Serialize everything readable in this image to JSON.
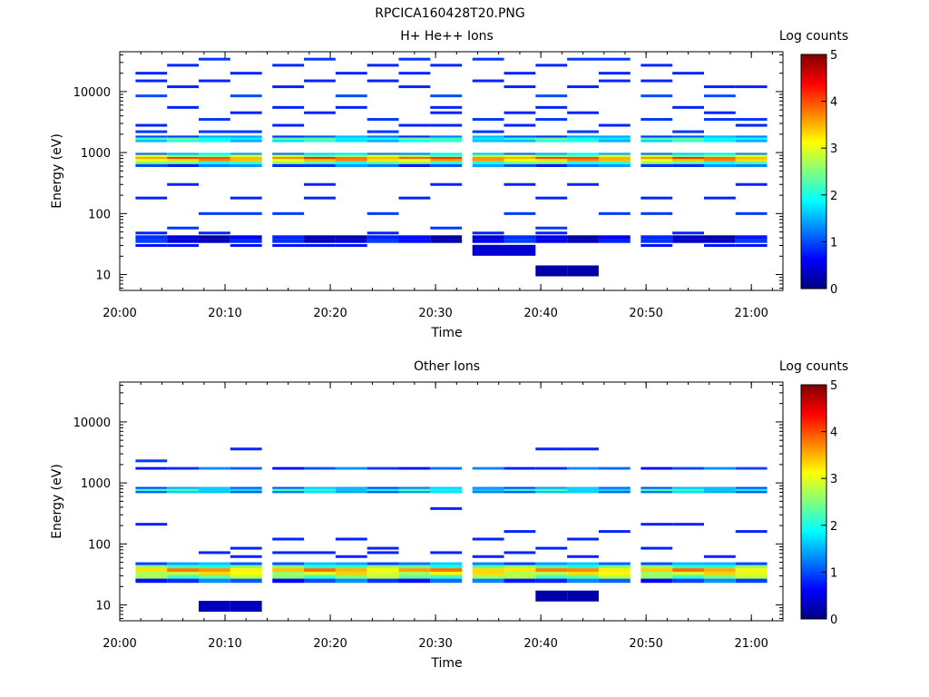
{
  "figure_title": "RPCICA160428T20.PNG",
  "colormap": [
    "#00007f",
    "#0000ff",
    "#007fff",
    "#00ffff",
    "#7fff7f",
    "#ffff00",
    "#ff7f00",
    "#ff0000",
    "#7f0000"
  ],
  "chart_data": [
    {
      "type": "heatmap",
      "title": "H+ He++ Ions",
      "xlabel": "Time",
      "ylabel": "Energy (eV)",
      "xlim": [
        "20:00",
        "21:03"
      ],
      "ylim": [
        5.5,
        45000
      ],
      "yscale": "log",
      "x_ticks": [
        "20:00",
        "20:10",
        "20:20",
        "20:30",
        "20:40",
        "20:50",
        "21:00"
      ],
      "y_ticks": [
        10,
        100,
        1000,
        10000
      ],
      "colorbar": {
        "label": "Log counts",
        "range": [
          0,
          5
        ],
        "ticks": [
          0,
          1,
          2,
          3,
          4,
          5
        ]
      },
      "time_bins": [
        "20:03",
        "20:06",
        "20:09",
        "20:12",
        "20:16",
        "20:19",
        "20:22",
        "20:25",
        "20:28",
        "20:31",
        "20:35",
        "20:38",
        "20:41",
        "20:44",
        "20:47",
        "20:51",
        "20:54",
        "20:57",
        "21:00"
      ],
      "bands": [
        {
          "energy_range": [
            580,
            650
          ],
          "level": 1.1
        },
        {
          "energy_range": [
            650,
            720
          ],
          "level": 2.3
        },
        {
          "energy_range": [
            720,
            790
          ],
          "level": 3.4
        },
        {
          "energy_range": [
            790,
            850
          ],
          "level": 3.8
        },
        {
          "energy_range": [
            850,
            920
          ],
          "level": 2.7
        },
        {
          "energy_range": [
            920,
            990
          ],
          "level": 1.5
        },
        {
          "energy_range": [
            1480,
            1620
          ],
          "level": 1.8
        },
        {
          "energy_range": [
            1620,
            1760
          ],
          "level": 2.1
        },
        {
          "energy_range": [
            1760,
            1900
          ],
          "level": 1.2
        },
        {
          "energy_range": [
            33,
            38
          ],
          "level": 0.6
        },
        {
          "energy_range": [
            38,
            44
          ],
          "level": 0.5
        }
      ],
      "sparse_counts": [
        {
          "energy": 11.5,
          "time_bins": [
            "20:41",
            "20:44"
          ],
          "level": 0.2
        },
        {
          "energy": 25,
          "time_bins": [
            "20:35",
            "20:38"
          ],
          "level": 0.4
        },
        {
          "energy": 30,
          "time_bins": [
            "20:03",
            "20:06",
            "20:12",
            "20:16",
            "20:19",
            "20:22",
            "20:51",
            "20:57",
            "21:00"
          ],
          "level": 0.7
        },
        {
          "energy": 48,
          "time_bins": [
            "20:03",
            "20:09",
            "20:25",
            "20:35",
            "20:41",
            "20:54"
          ],
          "level": 0.8
        },
        {
          "energy": 58,
          "time_bins": [
            "20:06",
            "20:31",
            "20:41"
          ],
          "level": 0.9
        },
        {
          "energy": 100,
          "time_bins": [
            "20:09",
            "20:12",
            "20:16",
            "20:25",
            "20:38",
            "20:47",
            "20:51",
            "21:00"
          ],
          "level": 0.9
        },
        {
          "energy": 180,
          "time_bins": [
            "20:03",
            "20:12",
            "20:19",
            "20:28",
            "20:41",
            "20:51",
            "20:57"
          ],
          "level": 0.8
        },
        {
          "energy": 300,
          "time_bins": [
            "20:06",
            "20:19",
            "20:31",
            "20:38",
            "20:44",
            "21:00"
          ],
          "level": 0.8
        },
        {
          "energy": 2200,
          "time_bins": [
            "20:03",
            "20:09",
            "20:12",
            "20:25",
            "20:35",
            "20:44",
            "20:54"
          ],
          "level": 0.9
        },
        {
          "energy": 2800,
          "time_bins": [
            "20:03",
            "20:16",
            "20:28",
            "20:31",
            "20:38",
            "20:47",
            "21:00"
          ],
          "level": 0.8
        },
        {
          "energy": 3500,
          "time_bins": [
            "20:09",
            "20:25",
            "20:35",
            "20:41",
            "20:51",
            "20:57",
            "21:00"
          ],
          "level": 0.9
        },
        {
          "energy": 4500,
          "time_bins": [
            "20:12",
            "20:19",
            "20:31",
            "20:38",
            "20:44",
            "20:57"
          ],
          "level": 0.8
        },
        {
          "energy": 5500,
          "time_bins": [
            "20:06",
            "20:16",
            "20:22",
            "20:31",
            "20:41",
            "20:54"
          ],
          "level": 0.8
        },
        {
          "energy": 8500,
          "time_bins": [
            "20:03",
            "20:12",
            "20:22",
            "20:31",
            "20:41",
            "20:51",
            "20:57"
          ],
          "level": 1.0
        },
        {
          "energy": 12000,
          "time_bins": [
            "20:06",
            "20:16",
            "20:28",
            "20:38",
            "20:44",
            "20:57",
            "21:00"
          ],
          "level": 0.8
        },
        {
          "energy": 15000,
          "time_bins": [
            "20:03",
            "20:09",
            "20:19",
            "20:25",
            "20:35",
            "20:47",
            "20:51"
          ],
          "level": 0.8
        },
        {
          "energy": 20000,
          "time_bins": [
            "20:03",
            "20:12",
            "20:22",
            "20:28",
            "20:38",
            "20:47",
            "20:54"
          ],
          "level": 0.8
        },
        {
          "energy": 27000,
          "time_bins": [
            "20:06",
            "20:16",
            "20:25",
            "20:31",
            "20:41",
            "20:51"
          ],
          "level": 0.8
        },
        {
          "energy": 34000,
          "time_bins": [
            "20:09",
            "20:19",
            "20:28",
            "20:35",
            "20:44",
            "20:47"
          ],
          "level": 0.9
        }
      ]
    },
    {
      "type": "heatmap",
      "title": "Other Ions",
      "xlabel": "Time",
      "ylabel": "Energy (eV)",
      "xlim": [
        "20:00",
        "21:03"
      ],
      "ylim": [
        5.5,
        45000
      ],
      "yscale": "log",
      "x_ticks": [
        "20:00",
        "20:10",
        "20:20",
        "20:30",
        "20:40",
        "20:50",
        "21:00"
      ],
      "y_ticks": [
        10,
        100,
        1000,
        10000
      ],
      "colorbar": {
        "label": "Log counts",
        "range": [
          0,
          5
        ],
        "ticks": [
          0,
          1,
          2,
          3,
          4,
          5
        ]
      },
      "time_bins": [
        "20:03",
        "20:06",
        "20:09",
        "20:12",
        "20:16",
        "20:19",
        "20:22",
        "20:25",
        "20:28",
        "20:31",
        "20:35",
        "20:38",
        "20:41",
        "20:44",
        "20:47",
        "20:51",
        "20:54",
        "20:57",
        "21:00"
      ],
      "bands": [
        {
          "energy_range": [
            23,
            27
          ],
          "level": 1.0
        },
        {
          "energy_range": [
            27,
            31
          ],
          "level": 2.5
        },
        {
          "energy_range": [
            31,
            35
          ],
          "level": 3.0
        },
        {
          "energy_range": [
            35,
            40
          ],
          "level": 3.5
        },
        {
          "energy_range": [
            40,
            45
          ],
          "level": 2.3
        },
        {
          "energy_range": [
            45,
            50
          ],
          "level": 1.3
        },
        {
          "energy_range": [
            680,
            740
          ],
          "level": 1.4
        },
        {
          "energy_range": [
            740,
            800
          ],
          "level": 1.9
        },
        {
          "energy_range": [
            800,
            860
          ],
          "level": 1.3
        },
        {
          "energy_range": [
            1650,
            1820
          ],
          "level": 1.0
        }
      ],
      "sparse_counts": [
        {
          "energy": 9.5,
          "time_bins": [
            "20:09",
            "20:12"
          ],
          "level": 0.3
        },
        {
          "energy": 14,
          "time_bins": [
            "20:41",
            "20:44"
          ],
          "level": 0.2
        },
        {
          "energy": 62,
          "time_bins": [
            "20:12",
            "20:22",
            "20:35",
            "20:44",
            "20:57"
          ],
          "level": 0.8
        },
        {
          "energy": 72,
          "time_bins": [
            "20:09",
            "20:16",
            "20:19",
            "20:25",
            "20:31",
            "20:38"
          ],
          "level": 0.8
        },
        {
          "energy": 85,
          "time_bins": [
            "20:12",
            "20:25",
            "20:41",
            "20:51"
          ],
          "level": 0.8
        },
        {
          "energy": 120,
          "time_bins": [
            "20:16",
            "20:22",
            "20:35",
            "20:44"
          ],
          "level": 0.8
        },
        {
          "energy": 160,
          "time_bins": [
            "20:38",
            "20:47",
            "21:00"
          ],
          "level": 0.8
        },
        {
          "energy": 210,
          "time_bins": [
            "20:03",
            "20:51",
            "20:54"
          ],
          "level": 0.8
        },
        {
          "energy": 380,
          "time_bins": [
            "20:31"
          ],
          "level": 0.8
        },
        {
          "energy": 2300,
          "time_bins": [
            "20:03"
          ],
          "level": 0.9
        },
        {
          "energy": 3600,
          "time_bins": [
            "20:12",
            "20:41",
            "20:44"
          ],
          "level": 0.8
        }
      ]
    }
  ]
}
